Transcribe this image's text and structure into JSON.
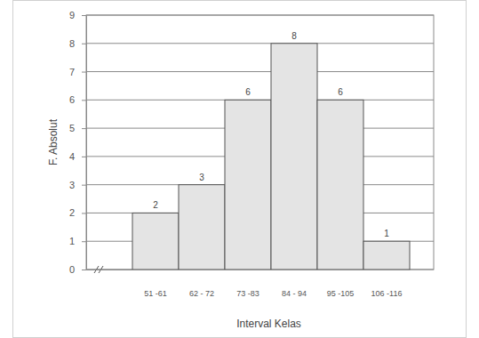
{
  "chart_data": {
    "type": "bar",
    "categories": [
      null,
      "51 -61",
      "62 - 72",
      "73 -83",
      "84 - 94",
      "95 -105",
      "106 -116"
    ],
    "values": [
      null,
      2,
      3,
      6,
      8,
      6,
      1
    ],
    "color": "#e4e4e4",
    "xlabel": "Interval Kelas",
    "ylabel": "F. Absolut",
    "ylim": [
      0,
      9
    ],
    "yticks": [
      0,
      1,
      2,
      3,
      4,
      5,
      6,
      7,
      8,
      9
    ],
    "grid": true,
    "data_labels": true
  }
}
